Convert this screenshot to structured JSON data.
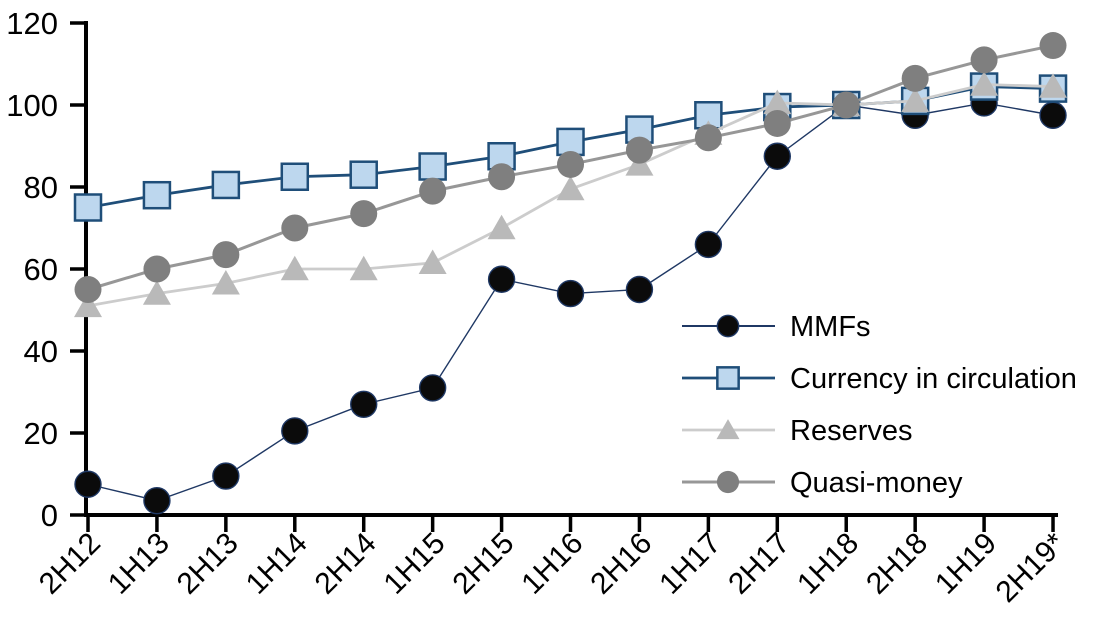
{
  "chart_data": {
    "type": "line",
    "title": "",
    "xlabel": "",
    "ylabel": "",
    "grid": false,
    "legend_position": "middle-right",
    "categories": [
      "2H12",
      "1H13",
      "2H13",
      "1H14",
      "2H14",
      "1H15",
      "2H15",
      "1H16",
      "2H16",
      "1H17",
      "2H17",
      "1H18",
      "2H18",
      "1H19",
      "2H19*"
    ],
    "y_axis": {
      "min": 0,
      "max": 120,
      "step": 20,
      "tick_labels": [
        "0",
        "20",
        "40",
        "60",
        "80",
        "100",
        "120"
      ]
    },
    "series": [
      {
        "name": "MMFs",
        "marker": "circle",
        "marker_fill": "#0b0b0b",
        "marker_stroke": "#1f3864",
        "marker_size": 13,
        "line_color": "#1f3864",
        "line_width": 1.4,
        "values": [
          7.5,
          3.5,
          9.5,
          20.5,
          27,
          31,
          57.5,
          54,
          55,
          66,
          87.5,
          100,
          97.5,
          100.5,
          97.5
        ]
      },
      {
        "name": "Currency in circulation",
        "marker": "square",
        "marker_fill": "#bdd7ee",
        "marker_stroke": "#1f4e79",
        "marker_size": 13,
        "line_color": "#1f4e79",
        "line_width": 2.8,
        "values": [
          75,
          78,
          80.5,
          82.5,
          83,
          85,
          87.5,
          91,
          94,
          97.5,
          99.5,
          100,
          101,
          104.5,
          104
        ]
      },
      {
        "name": "Reserves",
        "marker": "triangle",
        "marker_fill": "#b9b9b9",
        "marker_stroke": "none",
        "marker_size": 14,
        "line_color": "#cccccc",
        "line_width": 2.8,
        "values": [
          51,
          54,
          56.5,
          60,
          60,
          61.5,
          70,
          79.5,
          85.5,
          93,
          100.5,
          100,
          101,
          105,
          104.5
        ]
      },
      {
        "name": "Quasi-money",
        "marker": "circle",
        "marker_fill": "#7f7f7f",
        "marker_stroke": "none",
        "marker_size": 13.5,
        "line_color": "#979797",
        "line_width": 3,
        "values": [
          55,
          60,
          63.5,
          70,
          73.5,
          79,
          82.5,
          85.5,
          89,
          92,
          95.5,
          100,
          106.5,
          111,
          114.5
        ]
      }
    ],
    "axis_color": "#000000",
    "axis_width": 4
  }
}
